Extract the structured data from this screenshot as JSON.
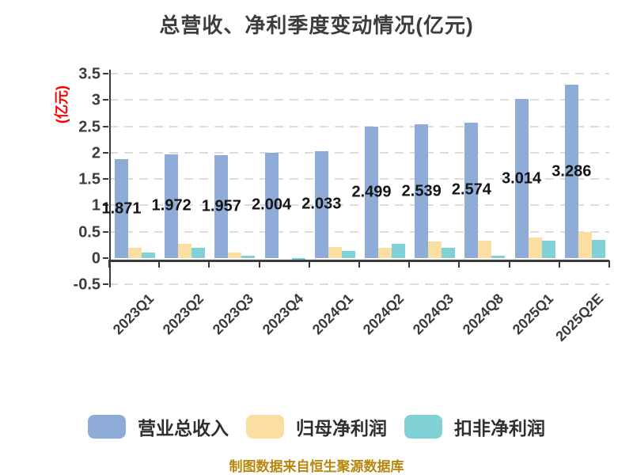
{
  "title": "总营收、净利季度变动情况(亿元)",
  "ylabel": "(亿元)",
  "footer": "制图数据来自恒生聚源数据库",
  "colors": {
    "revenue": "#8facd8",
    "net_profit": "#fbdea2",
    "non_gaap": "#80d2d6",
    "grid": "#dcdcdc",
    "axis_line": "#3a3a3a",
    "axis_text": "#3d3d3d",
    "data_label": "#141414",
    "ylabel_red": "#ff0000",
    "footer_text": "#b8860b"
  },
  "chart_data": {
    "type": "bar",
    "categories": [
      "2023Q1",
      "2023Q2",
      "2023Q3",
      "2023Q4",
      "2024Q1",
      "2024Q2",
      "2024Q3",
      "2024Q8",
      "2025Q1",
      "2025Q2E"
    ],
    "series": [
      {
        "name": "营业总收入",
        "color_key": "revenue",
        "labeled": true,
        "values": [
          1.871,
          1.972,
          1.957,
          2.004,
          2.033,
          2.499,
          2.539,
          2.574,
          3.014,
          3.286
        ]
      },
      {
        "name": "归母净利润",
        "color_key": "net_profit",
        "labeled": false,
        "values": [
          0.2,
          0.27,
          0.11,
          0.0,
          0.21,
          0.19,
          0.31,
          0.33,
          0.39,
          0.5
        ]
      },
      {
        "name": "扣非净利润",
        "color_key": "non_gaap",
        "labeled": false,
        "values": [
          0.1,
          0.19,
          0.05,
          -0.08,
          0.14,
          0.27,
          0.19,
          0.04,
          0.33,
          0.34
        ]
      }
    ],
    "ylim": [
      -0.5,
      3.5
    ],
    "ytick_step": 0.5,
    "grid": "horizontal-dashed",
    "legend_position": "bottom",
    "xlabel_rotation": 45
  }
}
